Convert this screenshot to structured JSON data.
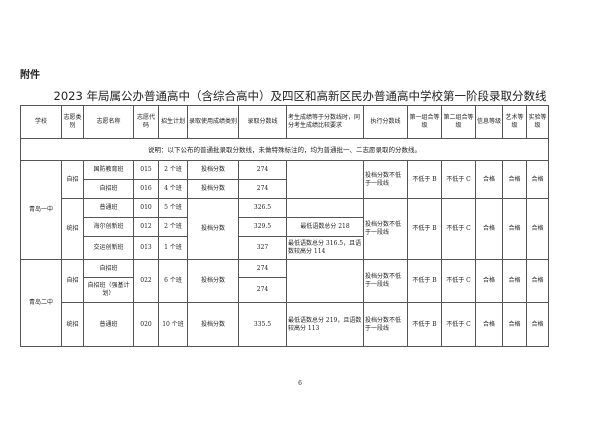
{
  "attachment_label": "附件",
  "title": "2023 年局属公办普通高中（含综合高中）及四区和高新区民办普通高中学校第一阶段录取分数线",
  "headers": [
    "学校",
    "志愿类别",
    "志愿名称",
    "志愿代码",
    "招生计划",
    "录取使用成绩类别",
    "录取分数线",
    "考生成绩等于分数线时，同分考生成绩比较要求",
    "执行分数线",
    "第一组合等级",
    "第二组合等级",
    "信息等级",
    "艺术等级",
    "实验等级"
  ],
  "note": "说明：以下公布的普通批录取分数线，未做特殊标注的，均为普通批一、二志愿录取的分数线。",
  "schools": [
    {
      "name": "青岛一中",
      "groups": [
        {
          "category": "自招",
          "rows": [
            {
              "name": "国防教育班",
              "code": "015",
              "plan": "2 个班",
              "score_type": "投档分数",
              "score": "274"
            },
            {
              "name": "自招班",
              "code": "016",
              "plan": "4 个班",
              "score_type": "投档分数",
              "score": "274"
            }
          ],
          "exec": "投档分数不低于一段线",
          "g1": "不低于 B",
          "g2": "不低于 C",
          "info": "合格",
          "art": "合格",
          "lab": "合格"
        },
        {
          "category": "统招",
          "score_type": "投档分数",
          "rows": [
            {
              "name": "普通班",
              "code": "010",
              "plan": "5 个班",
              "score": "326.5",
              "tie": ""
            },
            {
              "name": "海尔创新班",
              "code": "012",
              "plan": "2 个班",
              "score": "329.5",
              "tie": "最低语数总分 218"
            },
            {
              "name": "交运创新班",
              "code": "013",
              "plan": "1 个班",
              "score": "327",
              "tie": "最低语数总分 316.5，且语数较高分 114"
            }
          ],
          "exec": "投档分数不低于一段线",
          "g1": "不低于 B",
          "g2": "不低于 C",
          "info": "合格",
          "art": "合格",
          "lab": "合格"
        }
      ]
    },
    {
      "name": "青岛二中",
      "groups": [
        {
          "category": "自招",
          "code": "022",
          "plan": "6 个班",
          "score_type": "投档分数",
          "rows": [
            {
              "name": "自招班",
              "score": "274"
            },
            {
              "name": "自招班（强基计划）",
              "score": "274"
            }
          ],
          "exec": "投档分数不低于一段线",
          "g1": "不低于 B",
          "g2": "不低于 C",
          "info": "合格",
          "art": "合格",
          "lab": "合格"
        },
        {
          "category": "统招",
          "rows": [
            {
              "name": "普通班",
              "code": "020",
              "plan": "10 个班",
              "score_type": "投档分数",
              "score": "335.5",
              "tie": "最低语数总分 219，且语数较高分 113"
            }
          ],
          "exec": "投档分数不低于一段线",
          "g1": "不低于 B",
          "g2": "不低于 C",
          "info": "合格",
          "art": "合格",
          "lab": "合格"
        }
      ]
    }
  ],
  "page_number": "6"
}
